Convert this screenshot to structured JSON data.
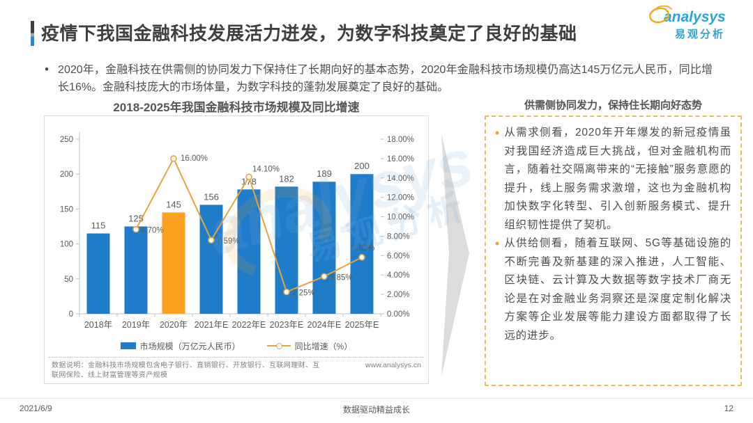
{
  "header": {
    "title": "疫情下我国金融科技发展活力迸发，为数字科技奠定了良好的基础",
    "logo": {
      "brand": "analysys",
      "brand_cn": "易观分析"
    }
  },
  "summary": {
    "bullet": "2020年，金融科技在供需侧的协同发力下保持住了长期向好的基本态势，2020年金融科技市场规模仍高达145万亿元人民币，同比增长16%。金融科技庞大的市场体量，为数字科技的蓬勃发展奠定了良好的基础。"
  },
  "chart_panel": {
    "title": "2018-2025年我国金融科技市场规模及同比增速",
    "legend": [
      {
        "label": "市场规模（万亿元人民币）",
        "type": "bar",
        "color": "#1F7CC8"
      },
      {
        "label": "同比增速（%）",
        "type": "line",
        "color": "#E9A33B"
      }
    ],
    "footnote": "数据说明：金融科技市场规模包含电子银行、直销银行、开放银行、互联网理财、互联网保险、线上财富管理等资产规模",
    "source_url": "www.analysys.cn"
  },
  "chart_data": {
    "type": "bar+line",
    "title": "2018-2025年我国金融科技市场规模及同比增速",
    "categories": [
      "2018年",
      "2019年",
      "2020年",
      "2021年E",
      "2022年E",
      "2023年E",
      "2024年E",
      "2025年E"
    ],
    "series": [
      {
        "name": "市场规模（万亿元人民币）",
        "type": "bar",
        "values": [
          115,
          125,
          145,
          156,
          178,
          182,
          189,
          200
        ]
      },
      {
        "name": "同比增速（%）",
        "type": "line",
        "values": [
          null,
          8.7,
          16.0,
          7.59,
          14.1,
          2.25,
          3.85,
          5.82
        ],
        "labels": [
          null,
          "8.70%",
          "16.00%",
          "7.59%",
          "14.10%",
          "2.25%",
          "3.85%",
          "5.82%"
        ]
      }
    ],
    "left_axis": {
      "ticks": [
        0,
        50,
        100,
        150,
        200,
        250
      ],
      "max": 250
    },
    "right_axis": {
      "tick_labels": [
        "0.00%",
        "2.00%",
        "4.00%",
        "6.00%",
        "8.00%",
        "10.00%",
        "12.00%",
        "14.00%",
        "16.00%",
        "18.00%"
      ],
      "max": 18
    },
    "highlight_index": 2,
    "bar_color": "#1F7CC8",
    "highlight_color": "#FAA21D",
    "line_color": "#E9A33B",
    "grid": false,
    "legend_position": "bottom"
  },
  "right_panel": {
    "title": "供需侧协同发力，保持住长期向好态势",
    "bullets": [
      "从需求侧看，2020年开年爆发的新冠疫情虽对我国经济造成巨大挑战，但对金融机构而言，随着社交隔离带来的“无接触”服务意愿的提升，线上服务需求激增，这也为金融机构加快数字化转型、引入创新服务模式、提升组织韧性提供了契机。",
      "从供给侧看，随着互联网、5G等基础设施的不断完善及新基建的深入推进，人工智能、区块链、云计算及大数据等数字技术厂商无论是在对金融业务洞察还是深度定制化解决方案等企业发展等能力建设方面都取得了长远的进步。"
    ]
  },
  "footer": {
    "date": "2021/6/9",
    "center": "数据驱动精益成长",
    "page": "12"
  },
  "watermark": {
    "brand": "analysys",
    "brand_cn": "易观分析"
  },
  "colors": {
    "accent_blue": "#2E86C8",
    "bar": "#1F7CC8",
    "bar_highlight": "#FAA21D",
    "line": "#E9A33B",
    "panel_border": "#D9D9D9",
    "dashed_border": "#EFB858",
    "brand_blue": "#2AA4DC",
    "brand_orange": "#F5A623"
  }
}
